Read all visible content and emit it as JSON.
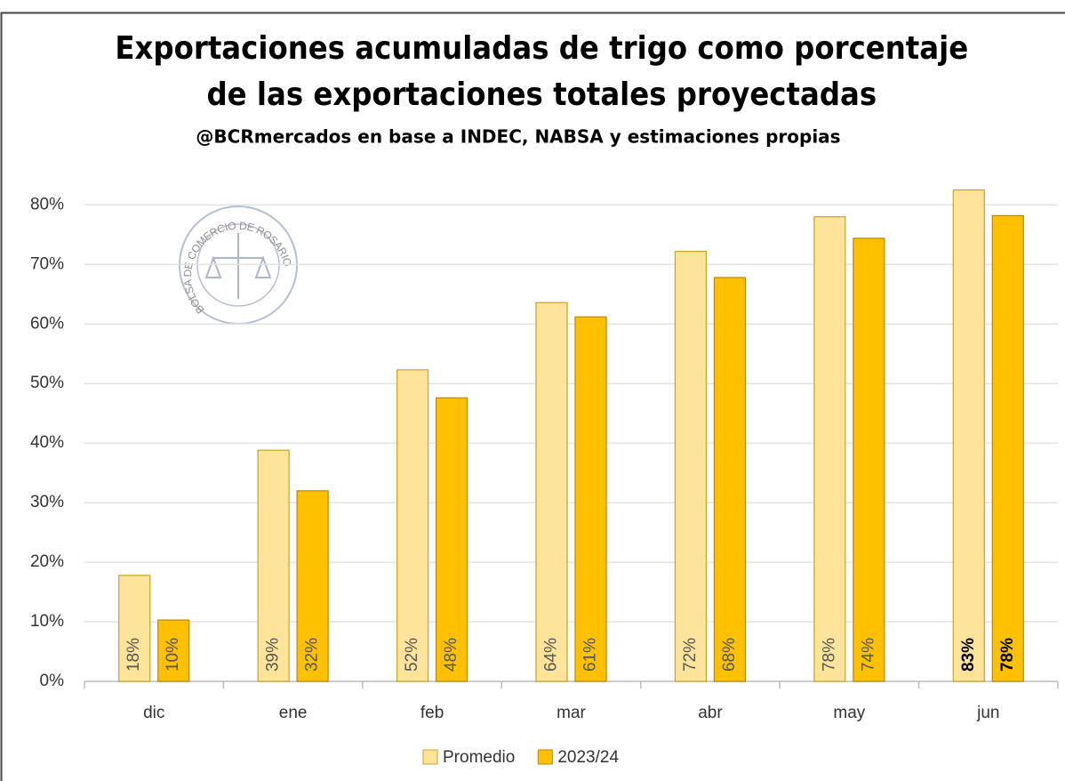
{
  "chart_data": {
    "type": "bar",
    "title": [
      "Exportaciones acumuladas de trigo como porcentaje",
      "de las exportaciones totales proyectadas"
    ],
    "subtitle": "@BCRmercados en base a INDEC, NABSA y estimaciones propias",
    "logo_text": "BOLSA DE COMERCIO DE ROSARIO",
    "categories": [
      "dic",
      "ene",
      "feb",
      "mar",
      "abr",
      "may",
      "jun"
    ],
    "series": [
      {
        "name": "Promedio",
        "color": "#fde49a",
        "edge": "#c9a227",
        "values": [
          17.8,
          38.8,
          52.3,
          63.6,
          72.2,
          78,
          82.5
        ],
        "value_labels": [
          "18%",
          "39%",
          "52%",
          "64%",
          "72%",
          "78%",
          "83%"
        ]
      },
      {
        "name": "2023/24",
        "color": "#ffc000",
        "edge": "#b8860b",
        "values": [
          10.3,
          32,
          47.6,
          61.2,
          67.8,
          74.4,
          78.2
        ],
        "value_labels": [
          "10%",
          "32%",
          "48%",
          "61%",
          "68%",
          "74%",
          "78%"
        ]
      }
    ],
    "ylim": [
      0,
      80.5
    ],
    "yticks": [
      {
        "value": 0,
        "label": "0%"
      },
      {
        "value": 10,
        "label": "10%"
      },
      {
        "value": 20,
        "label": "20%"
      },
      {
        "value": 30,
        "label": "30%"
      },
      {
        "value": 40,
        "label": "40%"
      },
      {
        "value": 50,
        "label": "50%"
      },
      {
        "value": 60,
        "label": "60%"
      },
      {
        "value": 70,
        "label": "70%"
      },
      {
        "value": 80,
        "label": "80%"
      }
    ],
    "grid": true,
    "legend": "bottom"
  }
}
